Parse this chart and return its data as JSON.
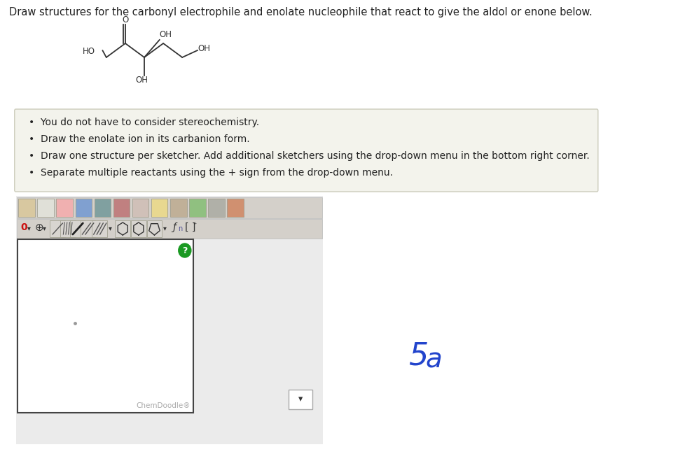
{
  "title_text": "Draw structures for the carbonyl electrophile and enolate nucleophile that react to give the aldol or enone below.",
  "title_fontsize": 10.5,
  "title_color": "#222222",
  "bg_color": "#ffffff",
  "molecule_color": "#333333",
  "bullet_box_facecolor": "#f3f3ec",
  "bullet_box_edgecolor": "#ccccbb",
  "bullet_lines": [
    "You do not have to consider stereochemistry.",
    "Draw the enolate ion in its carbanion form.",
    "Draw one structure per sketcher. Add additional sketchers using the drop-down menu in the bottom right corner.",
    "Separate multiple reactants using the + sign from the drop-down menu."
  ],
  "bullet_fontsize": 10.0,
  "chemdoodle_text": "ChemDoodle®",
  "handwritten_text": "5a",
  "handwritten_color": "#2244cc",
  "handwritten_fontsize": 30,
  "green_circle_color": "#1a9922",
  "toolbar_bg": "#dcdcdc",
  "toolbar_icon_bg": "#e8e8e8",
  "toolbar_icon_border": "#999999",
  "canvas_bg": "#ffffff",
  "canvas_border": "#444444",
  "outer_bg": "#ebebeb"
}
